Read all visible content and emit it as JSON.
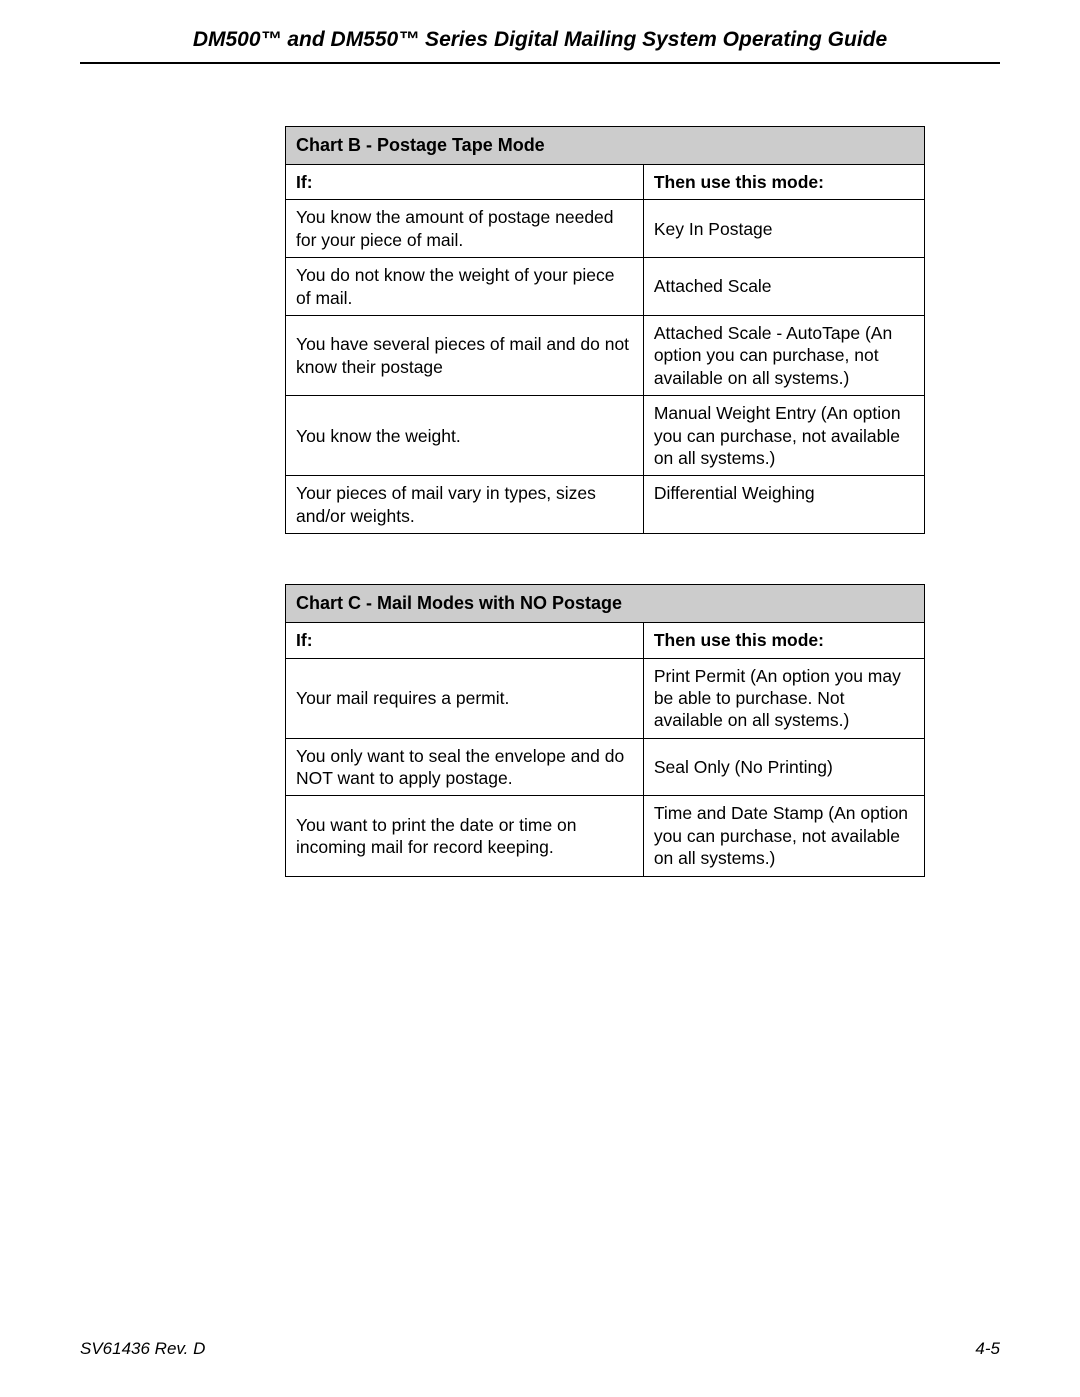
{
  "header": {
    "title": "DM500™ and DM550™ Series Digital Mailing System Operating Guide"
  },
  "chart_b": {
    "title": "Chart B - Postage Tape Mode",
    "columns": [
      "If:",
      "Then use this mode:"
    ],
    "rows": [
      [
        "You know the amount of postage needed for your piece of mail.",
        "Key In Postage"
      ],
      [
        "You do not know the weight of your piece of mail.",
        "Attached Scale"
      ],
      [
        "You have several pieces of mail and do not know their postage",
        "Attached Scale - AutoTape (An option you can purchase, not available on all systems.)"
      ],
      [
        "You know the weight.",
        "Manual Weight Entry (An option you can purchase, not available on all systems.)"
      ],
      [
        "Your pieces of mail vary in types, sizes and/or weights.",
        "Differential Weighing"
      ]
    ]
  },
  "chart_c": {
    "title": "Chart C - Mail Modes with NO Postage",
    "columns": [
      "If:",
      "Then use this mode:"
    ],
    "rows": [
      [
        "Your mail requires a permit.",
        "Print Permit (An option you may be able to purchase. Not available on all systems.)"
      ],
      [
        "You only want to seal the envelope and do NOT want to apply postage.",
        "Seal Only (No Printing)"
      ],
      [
        "You want to print the date or time on incoming mail for record keeping.",
        "Time and Date Stamp (An option you can purchase, not available on all systems.)"
      ]
    ]
  },
  "footer": {
    "left": "SV61436 Rev. D",
    "right": "4-5"
  }
}
